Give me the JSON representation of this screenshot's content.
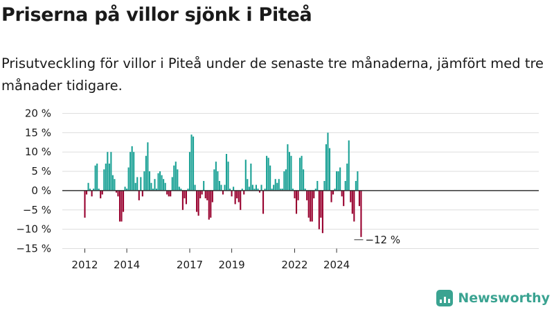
{
  "title": "Priserna på villor sjönk i Piteå",
  "subtitle": "Prisutveckling för villor i Piteå under de senaste tre månaderna, jämfört med tre månader tidigare.",
  "brand": {
    "name": "Newsworthy",
    "icon": "newsworthy-logo-icon"
  },
  "chart_data": {
    "type": "bar",
    "title": "",
    "xlabel": "",
    "ylabel": "",
    "ylim": [
      -15,
      20
    ],
    "y_ticks": [
      20,
      15,
      10,
      5,
      0,
      -5,
      -10,
      -15
    ],
    "y_tick_labels": [
      "20 %",
      "15 %",
      "10 %",
      "5 %",
      "0 %",
      "−5 %",
      "−10 %",
      "−15 %"
    ],
    "x_ticks": [
      "2012",
      "2014",
      "2017",
      "2019",
      "2022",
      "2024"
    ],
    "last_value_label": "−12 %",
    "grid": true,
    "colors": {
      "positive": "#1aa195",
      "negative": "#98002e",
      "grid": "#dddddd",
      "axis": "#333333"
    },
    "period": "monthly, 2012-01 to 2025-04",
    "values": [
      -7.0,
      -1.0,
      2.0,
      0.5,
      -1.5,
      0.5,
      6.5,
      7.0,
      0.5,
      -2.0,
      -1.0,
      5.5,
      7.0,
      10.0,
      7.0,
      10.0,
      4.0,
      3.0,
      -0.5,
      -1.5,
      -8.0,
      -8.0,
      -5.5,
      1.0,
      0.5,
      6.0,
      10.0,
      11.5,
      10.0,
      2.0,
      3.5,
      -2.5,
      3.5,
      -1.5,
      5.0,
      9.0,
      12.5,
      5.0,
      2.0,
      0.5,
      3.0,
      0.5,
      4.5,
      5.0,
      4.0,
      3.0,
      2.0,
      -1.0,
      -1.5,
      -1.5,
      3.5,
      6.5,
      7.5,
      5.5,
      1.0,
      0.5,
      -5.0,
      -2.0,
      -3.5,
      0.5,
      10.0,
      14.5,
      14.0,
      1.5,
      -5.5,
      -6.5,
      -2.0,
      -1.0,
      2.5,
      -2.0,
      -2.5,
      -7.5,
      -7.0,
      -3.0,
      5.5,
      7.5,
      5.0,
      2.5,
      1.5,
      -1.0,
      1.5,
      9.5,
      7.5,
      0.5,
      -1.5,
      1.0,
      -3.5,
      -2.0,
      -3.0,
      -5.0,
      0.5,
      -1.0,
      8.0,
      3.0,
      1.0,
      7.0,
      1.5,
      0.5,
      1.5,
      0.5,
      -0.5,
      1.5,
      -6.0,
      0.5,
      9.0,
      8.5,
      6.5,
      0.5,
      1.5,
      3.0,
      2.0,
      3.0,
      0.5,
      0.5,
      5.0,
      5.5,
      12.0,
      10.0,
      9.0,
      0.5,
      -2.0,
      -6.0,
      -2.5,
      8.5,
      9.0,
      5.5,
      0.5,
      -2.5,
      -7.0,
      -8.0,
      -8.0,
      -2.0,
      0.5,
      2.5,
      -10.0,
      -7.0,
      -11.0,
      2.5,
      12.0,
      15.0,
      11.0,
      -3.0,
      -1.0,
      0.5,
      5.0,
      5.0,
      6.0,
      -1.5,
      -4.0,
      2.5,
      7.0,
      13.0,
      -3.0,
      -6.0,
      -8.0,
      2.5,
      5.0,
      -4.0,
      -12.0
    ]
  }
}
